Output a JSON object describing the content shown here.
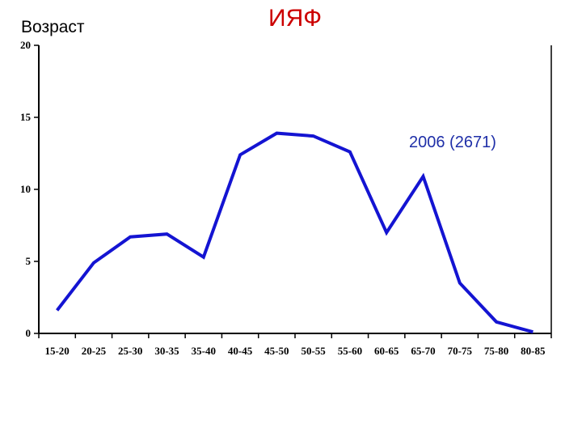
{
  "header": {
    "corner_label": "Возраст",
    "title": "ИЯФ"
  },
  "colors": {
    "title": "#cc0000",
    "series": "#1414d2",
    "series_label": "#1f2fa8",
    "axis": "#000000"
  },
  "chart_data": {
    "type": "line",
    "title": "ИЯФ",
    "ylabel": "Возраст",
    "xlabel": "",
    "categories": [
      "15-20",
      "20-25",
      "25-30",
      "30-35",
      "35-40",
      "40-45",
      "45-50",
      "50-55",
      "55-60",
      "60-65",
      "65-70",
      "70-75",
      "75-80",
      "80-85"
    ],
    "ylim": [
      0,
      20
    ],
    "yticks": [
      0,
      5,
      10,
      15,
      20
    ],
    "grid": false,
    "series": [
      {
        "name": "2006 (2671)",
        "values": [
          1.6,
          4.9,
          6.7,
          6.9,
          5.3,
          12.4,
          13.9,
          13.7,
          12.6,
          7.0,
          10.9,
          3.5,
          0.8,
          0.1
        ]
      }
    ]
  }
}
